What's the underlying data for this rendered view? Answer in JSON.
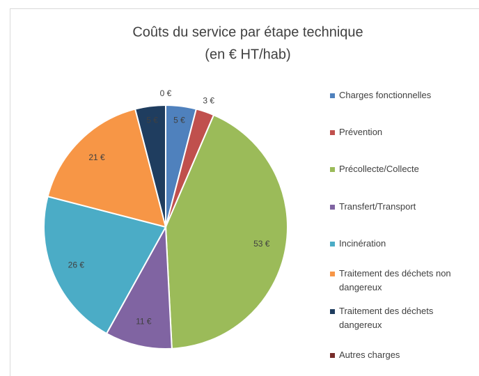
{
  "chart_data": {
    "type": "pie",
    "title": "Coûts du service par étape technique",
    "subtitle": "(en € HT/hab)",
    "categories": [
      "Charges fonctionnelles",
      "Prévention",
      "Précollecte/Collecte",
      "Transfert/Transport",
      "Incinération",
      "Traitement des déchets non dangereux",
      "Traitement des déchets dangereux",
      "Autres charges"
    ],
    "values": [
      5,
      3,
      53,
      11,
      26,
      21,
      5,
      0
    ],
    "value_labels": [
      "5 €",
      "3 €",
      "53 €",
      "11 €",
      "26 €",
      "21 €",
      "5 €",
      "0 €"
    ],
    "colors": [
      "#4f81bd",
      "#c0504d",
      "#9bbb59",
      "#8064a2",
      "#4bacc6",
      "#f79646",
      "#1f3d5f",
      "#772c2a"
    ],
    "legend": "right"
  }
}
